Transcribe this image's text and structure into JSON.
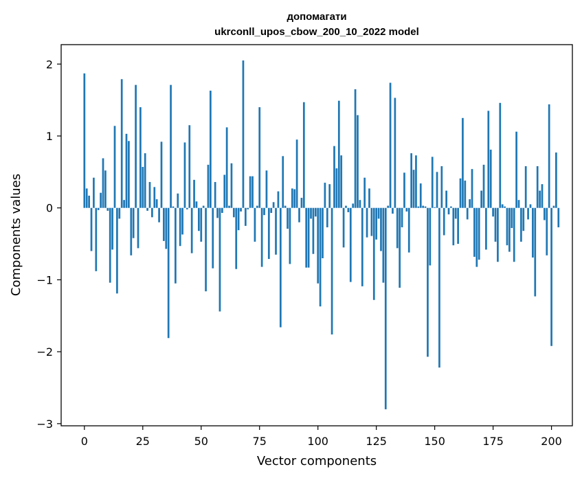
{
  "chart_data": {
    "type": "bar",
    "title_line1": "допомагати",
    "title_line2": "ukrconll_upos_cbow_200_10_2022 model",
    "xlabel": "Vector components",
    "ylabel": "Components values",
    "xlim": [
      -9.95,
      208.95
    ],
    "ylim": [
      -3.03,
      2.27
    ],
    "xticks": [
      0,
      25,
      50,
      75,
      100,
      125,
      150,
      175,
      200
    ],
    "xtick_labels": [
      "0",
      "25",
      "50",
      "75",
      "100",
      "125",
      "150",
      "175",
      "200"
    ],
    "yticks": [
      -3,
      -2,
      -1,
      0,
      1,
      2
    ],
    "ytick_labels": [
      "−3",
      "−2",
      "−1",
      "0",
      "1",
      "2"
    ],
    "bar_color": "#1f77b4",
    "values": [
      1.87,
      0.27,
      0.17,
      -0.6,
      0.42,
      -0.88,
      -0.03,
      0.21,
      0.69,
      0.52,
      -0.04,
      -1.04,
      -0.58,
      1.14,
      -1.19,
      -0.15,
      1.79,
      0.11,
      1.03,
      0.93,
      -0.66,
      -0.42,
      1.71,
      -0.56,
      1.4,
      0.57,
      0.76,
      -0.04,
      0.36,
      -0.13,
      0.29,
      0.12,
      -0.2,
      0.92,
      -0.46,
      -0.57,
      -1.81,
      1.71,
      0.02,
      -1.05,
      0.2,
      -0.53,
      -0.37,
      0.91,
      -0.02,
      1.15,
      -0.63,
      0.39,
      0.09,
      -0.32,
      -0.47,
      0.03,
      -1.16,
      0.6,
      1.63,
      -0.84,
      0.36,
      -0.14,
      -1.44,
      -0.07,
      0.46,
      1.12,
      0.03,
      0.62,
      -0.13,
      -0.85,
      -0.31,
      -0.05,
      2.05,
      -0.25,
      -0.02,
      0.44,
      0.44,
      -0.47,
      0.03,
      1.4,
      -0.82,
      -0.1,
      0.52,
      -0.71,
      -0.07,
      0.08,
      -0.65,
      0.23,
      -1.66,
      0.72,
      0.03,
      -0.29,
      -0.78,
      0.27,
      0.26,
      0.95,
      -0.2,
      0.14,
      1.47,
      -0.83,
      -0.83,
      -0.15,
      -0.64,
      -0.12,
      -1.05,
      -1.37,
      -0.7,
      0.35,
      -0.27,
      0.33,
      -1.76,
      0.86,
      0.55,
      1.49,
      0.73,
      -0.55,
      0.03,
      -0.06,
      -1.03,
      0.06,
      1.65,
      1.29,
      0.11,
      -1.09,
      0.42,
      -0.41,
      0.27,
      -0.39,
      -1.28,
      -0.44,
      -0.15,
      -0.6,
      -1.04,
      -2.8,
      0.03,
      1.74,
      -0.08,
      1.53,
      -0.56,
      -1.11,
      -0.27,
      0.49,
      -0.05,
      -0.62,
      0.76,
      0.53,
      0.73,
      0.02,
      0.34,
      0.03,
      0.02,
      -2.07,
      -0.8,
      0.71,
      0.01,
      0.5,
      -2.22,
      0.58,
      -0.38,
      0.24,
      -0.09,
      0.02,
      -0.52,
      -0.15,
      -0.5,
      0.41,
      1.25,
      0.38,
      -0.16,
      0.12,
      0.54,
      -0.68,
      -0.82,
      -0.72,
      0.24,
      0.6,
      -0.58,
      1.35,
      0.81,
      -0.12,
      -0.47,
      -0.75,
      1.46,
      0.05,
      0.02,
      -0.52,
      -0.61,
      -0.28,
      -0.75,
      1.06,
      0.11,
      -0.47,
      -0.32,
      0.58,
      -0.16,
      0.05,
      -0.69,
      -1.23,
      0.58,
      0.24,
      0.33,
      -0.17,
      -0.66,
      1.44,
      -1.92,
      0.03,
      0.77,
      -0.27
    ]
  }
}
